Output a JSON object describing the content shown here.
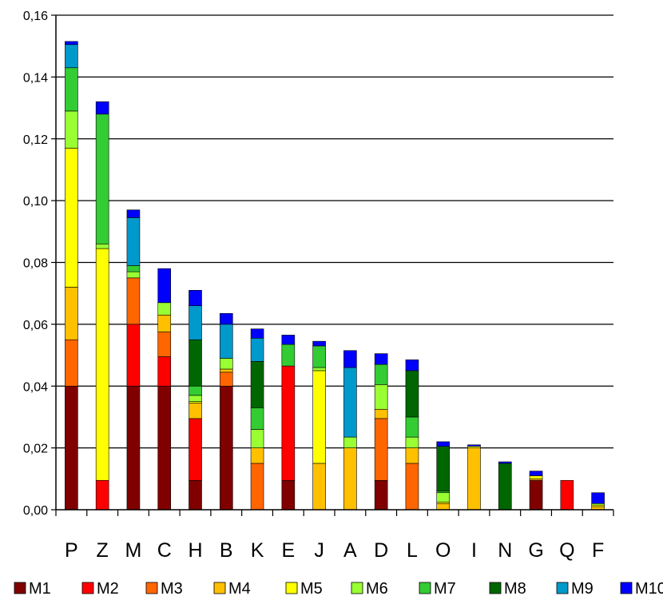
{
  "chart_data": {
    "type": "bar",
    "stacked": true,
    "categories": [
      "P",
      "Z",
      "M",
      "C",
      "H",
      "B",
      "K",
      "E",
      "J",
      "A",
      "D",
      "L",
      "O",
      "I",
      "N",
      "G",
      "Q",
      "F"
    ],
    "ylim": [
      0,
      0.16
    ],
    "yticks": [
      "0,00",
      "0,02",
      "0,04",
      "0,06",
      "0,08",
      "0,10",
      "0,12",
      "0,14",
      "0,16"
    ],
    "grid": true,
    "legend_position": "bottom",
    "series": [
      {
        "name": "M1",
        "color": "#800000",
        "values": [
          0.04,
          0,
          0.04,
          0.04,
          0.0095,
          0.04,
          0,
          0.0095,
          0,
          0,
          0.0095,
          0,
          0,
          0,
          0,
          0.0095,
          0,
          0
        ]
      },
      {
        "name": "M2",
        "color": "#ff0000",
        "values": [
          0,
          0.0095,
          0.02,
          0.0095,
          0.02,
          0,
          0,
          0.037,
          0,
          0,
          0,
          0,
          0,
          0,
          0,
          0,
          0.0095,
          0
        ]
      },
      {
        "name": "M3",
        "color": "#ff6600",
        "values": [
          0.015,
          0,
          0.015,
          0.008,
          0,
          0.0045,
          0.015,
          0,
          0,
          0,
          0.02,
          0.015,
          0,
          0,
          0,
          0,
          0,
          0
        ]
      },
      {
        "name": "M4",
        "color": "#ffc000",
        "values": [
          0.017,
          0,
          0,
          0.0055,
          0.005,
          0.001,
          0.005,
          0,
          0.015,
          0.02,
          0.003,
          0.005,
          0.002,
          0.02,
          0,
          0.0005,
          0,
          0.001
        ]
      },
      {
        "name": "M5",
        "color": "#ffff00",
        "values": [
          0.045,
          0.075,
          0,
          0,
          0.0005,
          0,
          0,
          0,
          0.03,
          0,
          0,
          0,
          0.0005,
          0.0005,
          0,
          0.001,
          0,
          0.0005
        ]
      },
      {
        "name": "M6",
        "color": "#99ff33",
        "values": [
          0.012,
          0.0015,
          0.002,
          0.004,
          0.002,
          0.0035,
          0.006,
          0,
          0.001,
          0.0035,
          0.008,
          0.0035,
          0.003,
          0,
          0,
          0,
          0,
          0.0005
        ]
      },
      {
        "name": "M7",
        "color": "#33cc33",
        "values": [
          0.014,
          0.042,
          0.002,
          0,
          0.003,
          0,
          0.007,
          0.007,
          0.007,
          0,
          0.0065,
          0.0065,
          0.0005,
          0,
          0,
          0,
          0,
          0
        ]
      },
      {
        "name": "M8",
        "color": "#006600",
        "values": [
          0,
          0,
          0,
          0,
          0.015,
          0,
          0.015,
          0,
          0,
          0,
          0,
          0.015,
          0.0145,
          0,
          0.015,
          0,
          0,
          0
        ]
      },
      {
        "name": "M9",
        "color": "#0099cc",
        "values": [
          0.0075,
          0,
          0.0155,
          0,
          0.011,
          0.011,
          0.0075,
          0,
          0,
          0.0225,
          0,
          0,
          0,
          0,
          0,
          0,
          0,
          0
        ]
      },
      {
        "name": "M10",
        "color": "#0000ff",
        "values": [
          0.001,
          0.004,
          0.0025,
          0.011,
          0.005,
          0.0035,
          0.003,
          0.003,
          0.0015,
          0.0055,
          0.0035,
          0.0035,
          0.0015,
          0.0005,
          0.0005,
          0.0015,
          0,
          0.0035
        ]
      }
    ]
  }
}
